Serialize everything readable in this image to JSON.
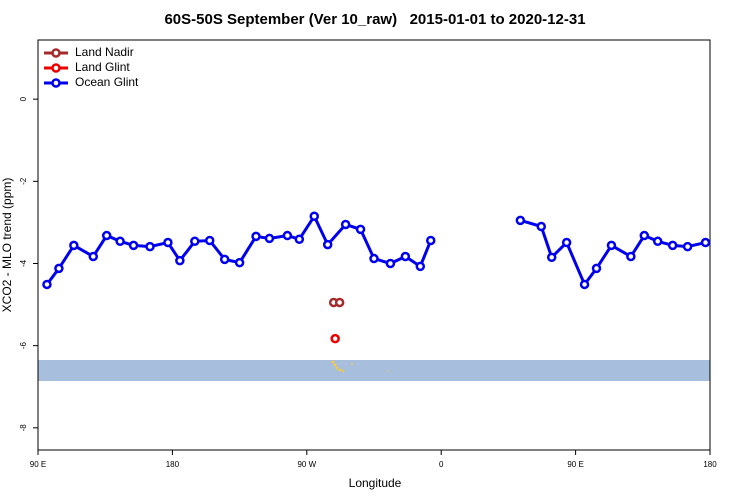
{
  "chart_data": {
    "type": "line",
    "title": "60S-50S September (Ver 10_raw)   2015-01-01 to 2020-12-31",
    "xlabel": "Longitude",
    "ylabel": "XCO2 - MLO trend (ppm)",
    "xlim": [
      90,
      540
    ],
    "xticks": [
      {
        "value": 90,
        "label": "90 E"
      },
      180,
      {
        "value": 270,
        "label": "90 W"
      },
      {
        "value": 360,
        "label": "0"
      },
      {
        "value": 450,
        "label": "90 E"
      },
      {
        "value": 540,
        "label": "180"
      }
    ],
    "ylim": [
      -8.54,
      1.44
    ],
    "yticks": [
      0,
      -2,
      -4,
      -6,
      -8
    ],
    "legend": "top-left",
    "series": [
      {
        "name": "Land Nadir",
        "color": "#a52a2a",
        "x": [
          288,
          292
        ],
        "values": [
          -4.95,
          -4.95
        ]
      },
      {
        "name": "Land Glint",
        "color": "#ee0000",
        "x": [
          289
        ],
        "values": [
          -5.83
        ]
      },
      {
        "name": "Ocean Glint",
        "color": "#0000ee",
        "x": [
          96,
          104,
          114,
          127,
          136,
          145,
          154,
          165,
          177,
          185,
          195,
          205,
          215,
          225,
          236,
          245,
          257,
          265,
          275,
          284,
          296,
          306,
          315,
          326,
          336,
          346,
          353,
          383,
          413,
          427,
          434,
          444,
          456,
          464,
          474,
          487,
          496,
          505,
          515,
          525,
          537
        ],
        "values": [
          -4.51,
          -4.12,
          -3.56,
          -3.83,
          -3.32,
          -3.46,
          -3.56,
          -3.59,
          -3.49,
          -3.93,
          -3.46,
          -3.44,
          -3.9,
          -3.98,
          -3.34,
          -3.39,
          -3.32,
          -3.41,
          -2.85,
          -3.54,
          -3.05,
          -3.17,
          -3.88,
          -4.0,
          -3.83,
          -4.07,
          -3.44,
          null,
          -2.95,
          -3.1,
          -3.85,
          -3.49,
          -4.51,
          -4.12,
          -3.56,
          -3.83,
          -3.32,
          -3.46,
          -3.56,
          -3.59,
          -3.49
        ]
      }
    ]
  }
}
